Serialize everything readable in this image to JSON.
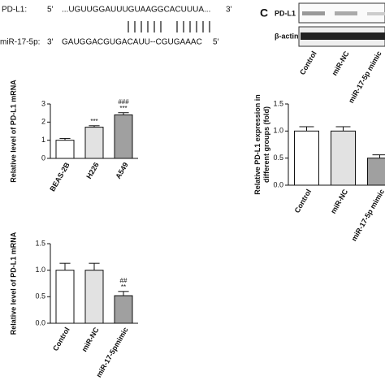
{
  "panel_label": "C",
  "sequence": {
    "target_name": "PD-L1:",
    "target_5": "5'",
    "target_seq": "...UGUUGGAUUUGUAAGGCACUUUA...",
    "target_3": "3'",
    "mirna_name": "miR-17-5p:",
    "mirna_3": "3'",
    "mirna_seq": "GAUGGACGUGACAUU--CGUGAAAC",
    "mirna_5": "5'"
  },
  "blot": {
    "rows": [
      "PD-L1",
      "β-actin"
    ],
    "lanes": [
      "Control",
      "miR-NC",
      "miR-17-5p mimic"
    ]
  },
  "chart_data": [
    {
      "type": "bar",
      "ylabel": [
        "Relative level of PD-L1 mRNA"
      ],
      "categories": [
        "BEAS-2B",
        "H226",
        "A549"
      ],
      "values": [
        1.0,
        1.72,
        2.4
      ],
      "errors": [
        0.1,
        0.08,
        0.12
      ],
      "colors": [
        "#ffffff",
        "#e2e2e2",
        "#a0a0a0"
      ],
      "markers": [
        null,
        [
          "***"
        ],
        [
          "###",
          "***"
        ]
      ],
      "ylim": [
        0,
        3
      ],
      "yticks": [
        0,
        1,
        2,
        3
      ]
    },
    {
      "type": "bar",
      "ylabel": [
        "Relative level of PD-L1 mRNA"
      ],
      "categories": [
        "Control",
        "miR-NC",
        "miR-17-5pmimic"
      ],
      "values": [
        1.0,
        1.0,
        0.52
      ],
      "errors": [
        0.13,
        0.13,
        0.08
      ],
      "colors": [
        "#ffffff",
        "#e2e2e2",
        "#a0a0a0"
      ],
      "markers": [
        null,
        null,
        [
          "##",
          "**"
        ]
      ],
      "ylim": [
        0,
        1.5
      ],
      "yticks": [
        {
          "value": 0,
          "label": "0.0"
        },
        0.5,
        {
          "value": 1,
          "label": "1.0"
        },
        1.5
      ]
    },
    {
      "type": "bar",
      "ylabel": [
        "Relative PD-L1 expression in",
        "different groups (fold)"
      ],
      "categories": [
        "Control",
        "miR-NC",
        "miR-17-5p mimic"
      ],
      "values": [
        1.0,
        1.0,
        0.5
      ],
      "errors": [
        0.08,
        0.08,
        0.06
      ],
      "colors": [
        "#ffffff",
        "#e2e2e2",
        "#a0a0a0"
      ],
      "markers": [
        null,
        null,
        null
      ],
      "ylim": [
        0,
        1.5
      ],
      "yticks": [
        {
          "value": 0,
          "label": "0.0"
        },
        0.5,
        {
          "value": 1,
          "label": "1.0"
        },
        1.5
      ]
    }
  ]
}
